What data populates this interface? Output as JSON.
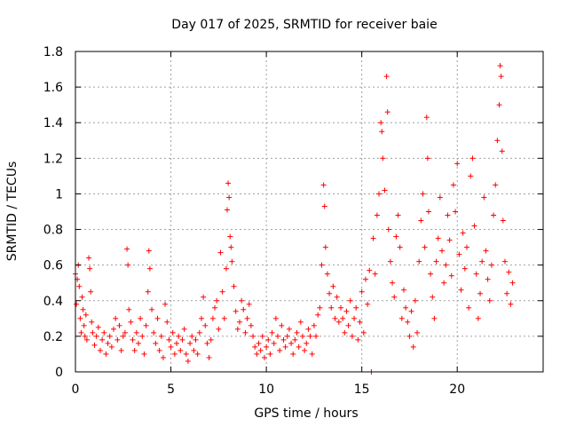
{
  "chart_data": {
    "type": "scatter",
    "title": "Day 017 of 2025, SRMTID for receiver baie",
    "xlabel": "GPS time / hours",
    "ylabel": "SRMTID / TECUs",
    "xlim": [
      0,
      24.5
    ],
    "ylim": [
      0,
      1.8
    ],
    "x_ticks": [
      0,
      5,
      10,
      15,
      20
    ],
    "y_ticks": [
      0,
      0.2,
      0.4,
      0.6,
      0.8,
      1,
      1.2,
      1.4,
      1.6,
      1.8
    ],
    "x_tick_labels": [
      "0",
      "5",
      "10",
      "15",
      "20"
    ],
    "y_tick_labels": [
      "0",
      "0.2",
      "0.4",
      "0.6",
      "0.8",
      "1",
      "1.2",
      "1.4",
      "1.6",
      "1.8"
    ],
    "grid": true,
    "marker": "+",
    "color": "#ff0000",
    "series": [
      {
        "name": "SRMTID",
        "points": [
          [
            0.0,
            0.55
          ],
          [
            0.05,
            0.38
          ],
          [
            0.1,
            0.52
          ],
          [
            0.15,
            0.6
          ],
          [
            0.2,
            0.48
          ],
          [
            0.25,
            0.3
          ],
          [
            0.3,
            0.22
          ],
          [
            0.35,
            0.42
          ],
          [
            0.4,
            0.35
          ],
          [
            0.45,
            0.26
          ],
          [
            0.5,
            0.2
          ],
          [
            0.55,
            0.32
          ],
          [
            0.6,
            0.18
          ],
          [
            0.7,
            0.64
          ],
          [
            0.75,
            0.58
          ],
          [
            0.8,
            0.45
          ],
          [
            0.85,
            0.28
          ],
          [
            0.9,
            0.22
          ],
          [
            1.0,
            0.15
          ],
          [
            1.1,
            0.2
          ],
          [
            1.2,
            0.25
          ],
          [
            1.3,
            0.12
          ],
          [
            1.4,
            0.18
          ],
          [
            1.5,
            0.22
          ],
          [
            1.6,
            0.1
          ],
          [
            1.7,
            0.16
          ],
          [
            1.8,
            0.2
          ],
          [
            1.9,
            0.14
          ],
          [
            2.0,
            0.24
          ],
          [
            2.1,
            0.3
          ],
          [
            2.2,
            0.18
          ],
          [
            2.3,
            0.26
          ],
          [
            2.4,
            0.12
          ],
          [
            2.5,
            0.2
          ],
          [
            2.6,
            0.22
          ],
          [
            2.7,
            0.69
          ],
          [
            2.75,
            0.6
          ],
          [
            2.8,
            0.35
          ],
          [
            2.9,
            0.28
          ],
          [
            3.0,
            0.18
          ],
          [
            3.1,
            0.12
          ],
          [
            3.2,
            0.22
          ],
          [
            3.3,
            0.16
          ],
          [
            3.4,
            0.3
          ],
          [
            3.5,
            0.2
          ],
          [
            3.6,
            0.1
          ],
          [
            3.7,
            0.26
          ],
          [
            3.8,
            0.45
          ],
          [
            3.85,
            0.68
          ],
          [
            3.9,
            0.58
          ],
          [
            4.0,
            0.35
          ],
          [
            4.1,
            0.22
          ],
          [
            4.2,
            0.16
          ],
          [
            4.3,
            0.3
          ],
          [
            4.4,
            0.12
          ],
          [
            4.5,
            0.2
          ],
          [
            4.6,
            0.08
          ],
          [
            4.7,
            0.38
          ],
          [
            4.8,
            0.28
          ],
          [
            4.9,
            0.18
          ],
          [
            5.0,
            0.14
          ],
          [
            5.1,
            0.22
          ],
          [
            5.2,
            0.1
          ],
          [
            5.3,
            0.16
          ],
          [
            5.4,
            0.2
          ],
          [
            5.5,
            0.12
          ],
          [
            5.6,
            0.18
          ],
          [
            5.7,
            0.24
          ],
          [
            5.8,
            0.1
          ],
          [
            5.9,
            0.06
          ],
          [
            6.0,
            0.16
          ],
          [
            6.1,
            0.2
          ],
          [
            6.2,
            0.12
          ],
          [
            6.3,
            0.18
          ],
          [
            6.4,
            0.1
          ],
          [
            6.5,
            0.22
          ],
          [
            6.6,
            0.3
          ],
          [
            6.7,
            0.42
          ],
          [
            6.8,
            0.26
          ],
          [
            6.9,
            0.16
          ],
          [
            7.0,
            0.08
          ],
          [
            7.1,
            0.18
          ],
          [
            7.2,
            0.3
          ],
          [
            7.3,
            0.36
          ],
          [
            7.4,
            0.4
          ],
          [
            7.5,
            0.24
          ],
          [
            7.6,
            0.67
          ],
          [
            7.7,
            0.45
          ],
          [
            7.8,
            0.3
          ],
          [
            7.9,
            0.58
          ],
          [
            7.95,
            0.91
          ],
          [
            8.0,
            1.06
          ],
          [
            8.05,
            0.98
          ],
          [
            8.1,
            0.76
          ],
          [
            8.15,
            0.7
          ],
          [
            8.2,
            0.62
          ],
          [
            8.3,
            0.48
          ],
          [
            8.4,
            0.34
          ],
          [
            8.5,
            0.24
          ],
          [
            8.6,
            0.28
          ],
          [
            8.7,
            0.4
          ],
          [
            8.8,
            0.35
          ],
          [
            8.9,
            0.22
          ],
          [
            9.0,
            0.3
          ],
          [
            9.1,
            0.38
          ],
          [
            9.2,
            0.26
          ],
          [
            9.3,
            0.2
          ],
          [
            9.4,
            0.14
          ],
          [
            9.5,
            0.1
          ],
          [
            9.6,
            0.16
          ],
          [
            9.7,
            0.12
          ],
          [
            9.8,
            0.2
          ],
          [
            9.9,
            0.08
          ],
          [
            10.0,
            0.14
          ],
          [
            10.1,
            0.18
          ],
          [
            10.2,
            0.1
          ],
          [
            10.3,
            0.22
          ],
          [
            10.4,
            0.16
          ],
          [
            10.5,
            0.3
          ],
          [
            10.6,
            0.2
          ],
          [
            10.7,
            0.12
          ],
          [
            10.8,
            0.26
          ],
          [
            10.9,
            0.18
          ],
          [
            11.0,
            0.14
          ],
          [
            11.1,
            0.2
          ],
          [
            11.2,
            0.24
          ],
          [
            11.3,
            0.16
          ],
          [
            11.4,
            0.1
          ],
          [
            11.5,
            0.18
          ],
          [
            11.6,
            0.22
          ],
          [
            11.7,
            0.14
          ],
          [
            11.8,
            0.28
          ],
          [
            11.9,
            0.2
          ],
          [
            12.0,
            0.12
          ],
          [
            12.1,
            0.16
          ],
          [
            12.2,
            0.24
          ],
          [
            12.3,
            0.2
          ],
          [
            12.4,
            0.1
          ],
          [
            12.5,
            0.26
          ],
          [
            12.6,
            0.2
          ],
          [
            12.7,
            0.32
          ],
          [
            12.8,
            0.36
          ],
          [
            12.9,
            0.6
          ],
          [
            13.0,
            1.05
          ],
          [
            13.05,
            0.93
          ],
          [
            13.1,
            0.7
          ],
          [
            13.2,
            0.55
          ],
          [
            13.3,
            0.44
          ],
          [
            13.4,
            0.36
          ],
          [
            13.5,
            0.48
          ],
          [
            13.6,
            0.3
          ],
          [
            13.7,
            0.42
          ],
          [
            13.8,
            0.28
          ],
          [
            13.9,
            0.36
          ],
          [
            14.0,
            0.3
          ],
          [
            14.1,
            0.22
          ],
          [
            14.2,
            0.34
          ],
          [
            14.3,
            0.26
          ],
          [
            14.4,
            0.4
          ],
          [
            14.5,
            0.2
          ],
          [
            14.6,
            0.3
          ],
          [
            14.7,
            0.36
          ],
          [
            14.8,
            0.18
          ],
          [
            14.9,
            0.28
          ],
          [
            15.0,
            0.45
          ],
          [
            15.1,
            0.22
          ],
          [
            15.2,
            0.52
          ],
          [
            15.3,
            0.38
          ],
          [
            15.4,
            0.57
          ],
          [
            15.5,
            0.0
          ],
          [
            15.6,
            0.75
          ],
          [
            15.7,
            0.55
          ],
          [
            15.8,
            0.88
          ],
          [
            15.9,
            1.0
          ],
          [
            16.0,
            1.4
          ],
          [
            16.05,
            1.35
          ],
          [
            16.1,
            1.2
          ],
          [
            16.2,
            1.02
          ],
          [
            16.3,
            1.66
          ],
          [
            16.35,
            1.46
          ],
          [
            16.4,
            0.8
          ],
          [
            16.5,
            0.62
          ],
          [
            16.6,
            0.5
          ],
          [
            16.7,
            0.42
          ],
          [
            16.8,
            0.76
          ],
          [
            16.9,
            0.88
          ],
          [
            17.0,
            0.7
          ],
          [
            17.1,
            0.3
          ],
          [
            17.2,
            0.46
          ],
          [
            17.3,
            0.36
          ],
          [
            17.4,
            0.28
          ],
          [
            17.5,
            0.2
          ],
          [
            17.6,
            0.34
          ],
          [
            17.7,
            0.14
          ],
          [
            17.8,
            0.4
          ],
          [
            17.9,
            0.22
          ],
          [
            18.0,
            0.62
          ],
          [
            18.1,
            0.85
          ],
          [
            18.2,
            1.0
          ],
          [
            18.3,
            0.7
          ],
          [
            18.4,
            1.43
          ],
          [
            18.45,
            1.2
          ],
          [
            18.5,
            0.9
          ],
          [
            18.6,
            0.55
          ],
          [
            18.7,
            0.42
          ],
          [
            18.8,
            0.3
          ],
          [
            18.9,
            0.62
          ],
          [
            19.0,
            0.75
          ],
          [
            19.1,
            0.98
          ],
          [
            19.2,
            0.68
          ],
          [
            19.3,
            0.5
          ],
          [
            19.4,
            0.6
          ],
          [
            19.5,
            0.88
          ],
          [
            19.6,
            0.74
          ],
          [
            19.7,
            0.54
          ],
          [
            19.8,
            1.05
          ],
          [
            19.9,
            0.9
          ],
          [
            20.0,
            1.17
          ],
          [
            20.1,
            0.66
          ],
          [
            20.2,
            0.46
          ],
          [
            20.3,
            0.78
          ],
          [
            20.4,
            0.58
          ],
          [
            20.5,
            0.7
          ],
          [
            20.6,
            0.36
          ],
          [
            20.7,
            1.1
          ],
          [
            20.8,
            1.2
          ],
          [
            20.9,
            0.82
          ],
          [
            21.0,
            0.55
          ],
          [
            21.1,
            0.3
          ],
          [
            21.2,
            0.44
          ],
          [
            21.3,
            0.62
          ],
          [
            21.4,
            0.98
          ],
          [
            21.5,
            0.68
          ],
          [
            21.6,
            0.52
          ],
          [
            21.7,
            0.4
          ],
          [
            21.8,
            0.6
          ],
          [
            21.9,
            0.88
          ],
          [
            22.0,
            1.05
          ],
          [
            22.1,
            1.3
          ],
          [
            22.2,
            1.5
          ],
          [
            22.25,
            1.72
          ],
          [
            22.3,
            1.66
          ],
          [
            22.35,
            1.24
          ],
          [
            22.4,
            0.85
          ],
          [
            22.5,
            0.62
          ],
          [
            22.6,
            0.44
          ],
          [
            22.7,
            0.56
          ],
          [
            22.8,
            0.38
          ],
          [
            22.9,
            0.5
          ]
        ]
      }
    ]
  }
}
